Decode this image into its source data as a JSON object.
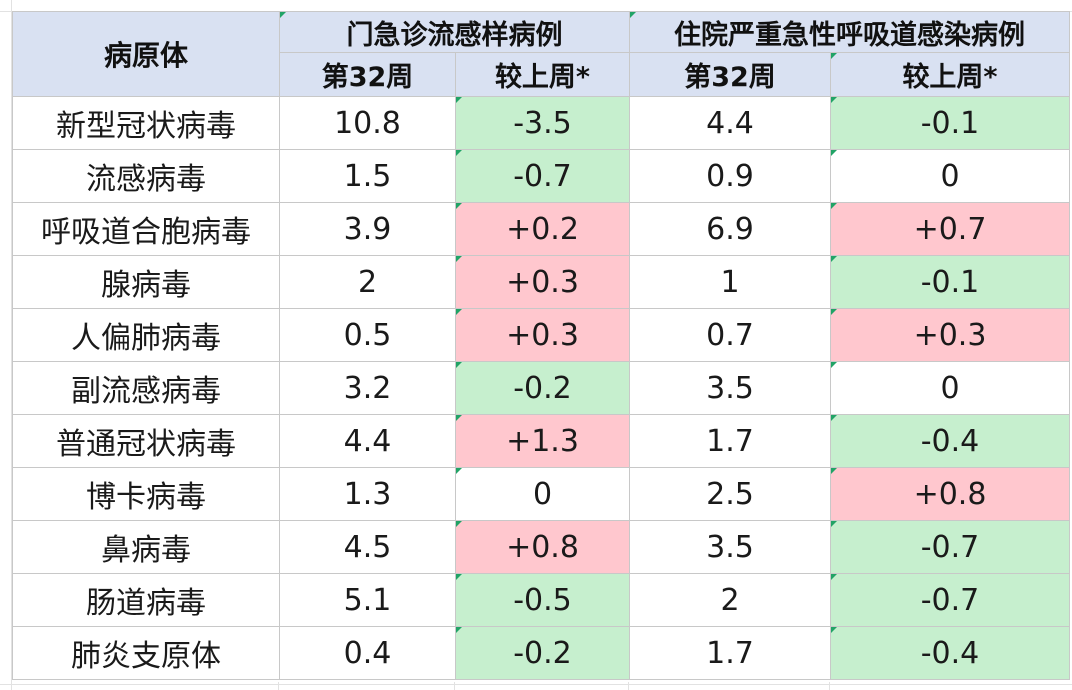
{
  "table": {
    "header": {
      "pathogen": "病原体",
      "group_outpatient": "门急诊流感样病例",
      "group_inpatient": "住院严重急性呼吸道感染病例",
      "outpatient_week": "第32周",
      "outpatient_change": "较上周*",
      "inpatient_week": "第32周",
      "inpatient_change": "较上周*"
    },
    "rows": [
      {
        "name": "新型冠状病毒",
        "op_val": "10.8",
        "op_chg": "-3.5",
        "ip_val": "4.4",
        "ip_chg": "-0.1"
      },
      {
        "name": "流感病毒",
        "op_val": "1.5",
        "op_chg": "-0.7",
        "ip_val": "0.9",
        "ip_chg": "0"
      },
      {
        "name": "呼吸道合胞病毒",
        "op_val": "3.9",
        "op_chg": "+0.2",
        "ip_val": "6.9",
        "ip_chg": "+0.7"
      },
      {
        "name": "腺病毒",
        "op_val": "2",
        "op_chg": "+0.3",
        "ip_val": "1",
        "ip_chg": "-0.1"
      },
      {
        "name": "人偏肺病毒",
        "op_val": "0.5",
        "op_chg": "+0.3",
        "ip_val": "0.7",
        "ip_chg": "+0.3"
      },
      {
        "name": "副流感病毒",
        "op_val": "3.2",
        "op_chg": "-0.2",
        "ip_val": "3.5",
        "ip_chg": "0"
      },
      {
        "name": "普通冠状病毒",
        "op_val": "4.4",
        "op_chg": "+1.3",
        "ip_val": "1.7",
        "ip_chg": "-0.4"
      },
      {
        "name": "博卡病毒",
        "op_val": "1.3",
        "op_chg": "0",
        "ip_val": "2.5",
        "ip_chg": "+0.8"
      },
      {
        "name": "鼻病毒",
        "op_val": "4.5",
        "op_chg": "+0.8",
        "ip_val": "3.5",
        "ip_chg": "-0.7"
      },
      {
        "name": "肠道病毒",
        "op_val": "5.1",
        "op_chg": "-0.5",
        "ip_val": "2",
        "ip_chg": "-0.7"
      },
      {
        "name": "肺炎支原体",
        "op_val": "0.4",
        "op_chg": "-0.2",
        "ip_val": "1.7",
        "ip_chg": "-0.4"
      }
    ]
  },
  "colors": {
    "header_bg": "#d9e1f2",
    "decrease_bg": "#c6efce",
    "decrease_text": "#006100",
    "increase_bg": "#ffc7ce",
    "increase_text": "#9c0006"
  }
}
